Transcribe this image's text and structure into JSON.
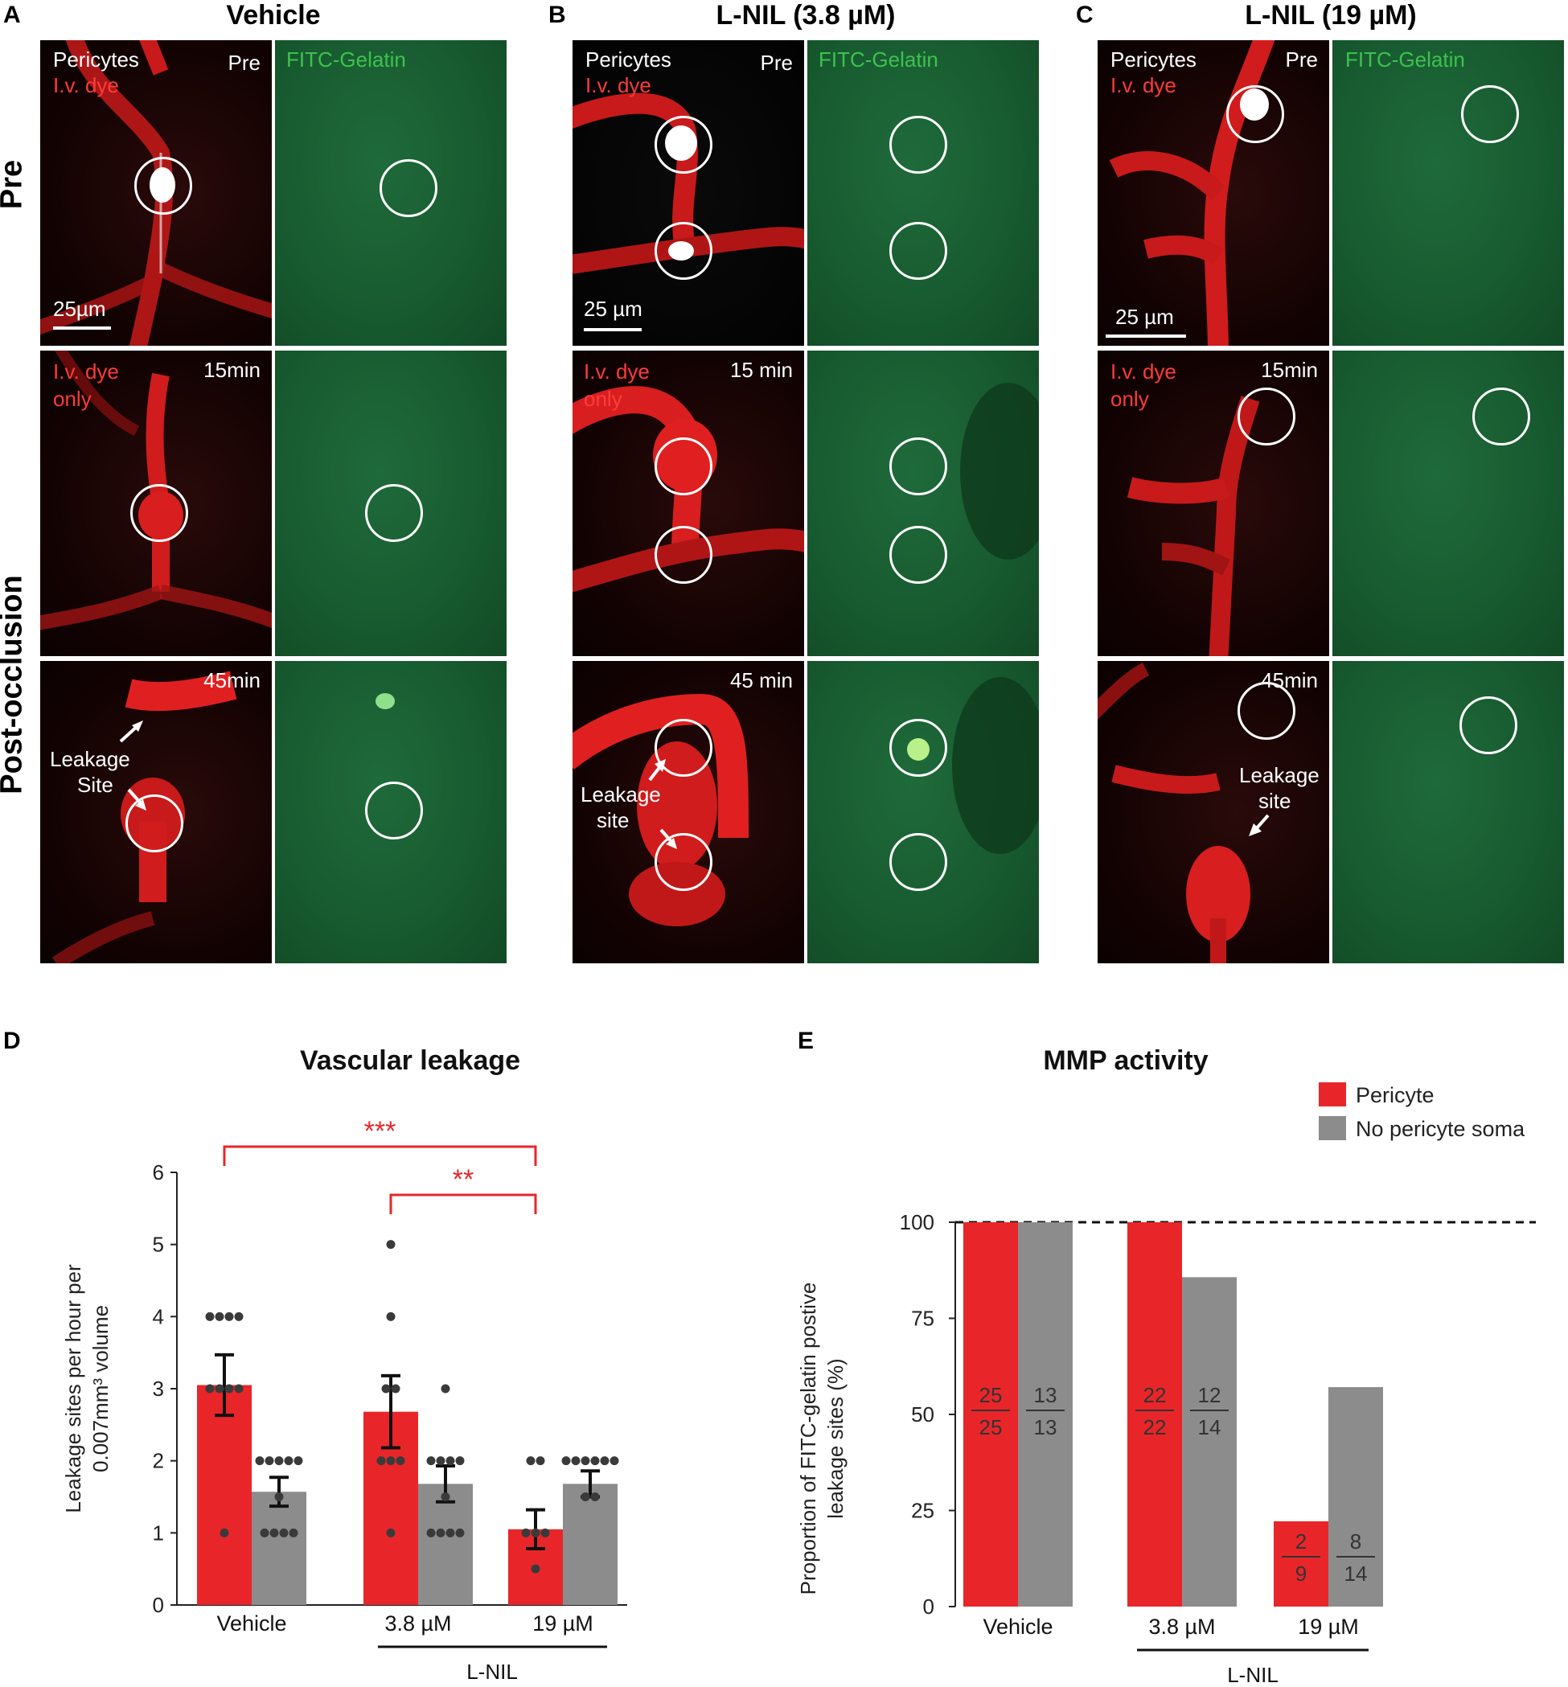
{
  "panel_labels": {
    "a": "A",
    "b": "B",
    "c": "C",
    "d": "D",
    "e": "E"
  },
  "columns": [
    {
      "title": "Vehicle"
    },
    {
      "title": "L-NIL (3.8 µM)"
    },
    {
      "title": "L-NIL (19 µM)"
    }
  ],
  "row_labels": {
    "pre": "Pre",
    "post": "Post-occlusion"
  },
  "micrographs": {
    "a": {
      "pre_l1": "Pericytes",
      "pre_l2": "I.v. dye",
      "pre_tag": "Pre",
      "green_label": "FITC-Gelatin",
      "scale": "25µm",
      "t15_l1": "I.v. dye",
      "t15_l2": "only",
      "t15_time": "15min",
      "t45_time": "45min",
      "leak_l1": "Leakage",
      "leak_l2": "Site"
    },
    "b": {
      "pre_l1": "Pericytes",
      "pre_l2": "I.v. dye",
      "pre_tag": "Pre",
      "green_label": "FITC-Gelatin",
      "scale": "25 µm",
      "t15_l1": "I.v. dye",
      "t15_l2": "only",
      "t15_time": "15 min",
      "t45_time": "45 min",
      "leak_l1": "Leakage",
      "leak_l2": "site"
    },
    "c": {
      "pre_l1": "Pericytes",
      "pre_l2": "I.v. dye",
      "pre_tag": "Pre",
      "green_label": "FITC-Gelatin",
      "scale": "25 µm",
      "t15_l1": "I.v. dye",
      "t15_l2": "only",
      "t15_time": "15min",
      "t45_time": "45min",
      "leak_l1": "Leakage",
      "leak_l2": "site"
    }
  },
  "colors": {
    "pericyte": "#e8262a",
    "no_pericyte": "#8c8c8c",
    "sig": "#e8262a",
    "dots": "#3a3a3a"
  },
  "chart_data": [
    {
      "type": "bar",
      "title": "Vascular leakage",
      "ylabel": "Leakage sites per hour per 0.007mm³ volume",
      "ylabel_l1": "Leakage sites per hour per",
      "ylabel_l2": "0.007mm³ volume",
      "categories": [
        "Vehicle",
        "3.8 µM",
        "19 µM"
      ],
      "group_label": "L-NIL",
      "ylim": [
        0,
        6
      ],
      "yticks": [
        "0",
        "1",
        "2",
        "3",
        "4",
        "5",
        "6"
      ],
      "series": [
        {
          "name": "Pericyte",
          "values": [
            3.05,
            2.68,
            1.05
          ],
          "sem": [
            0.42,
            0.5,
            0.27
          ],
          "points": [
            [
              4,
              4,
              4,
              4,
              3,
              3,
              3,
              3,
              1
            ],
            [
              5,
              4,
              3,
              3,
              2,
              2,
              2,
              1
            ],
            [
              2,
              2,
              1,
              1,
              1,
              0.5
            ]
          ]
        },
        {
          "name": "No pericyte soma",
          "values": [
            1.57,
            1.68,
            1.68
          ],
          "sem": [
            0.2,
            0.25,
            0.18
          ],
          "points": [
            [
              2,
              2,
              2,
              2,
              2,
              1.5,
              1,
              1,
              1,
              1
            ],
            [
              3,
              2,
              2,
              2,
              2,
              1.5,
              1,
              1,
              1,
              1
            ],
            [
              2,
              2,
              2,
              2,
              2,
              2,
              1.5,
              1.5
            ]
          ]
        }
      ],
      "significance": [
        {
          "from": 0,
          "to": 2,
          "label": "***"
        },
        {
          "from": 1,
          "to": 2,
          "label": "**"
        }
      ]
    },
    {
      "type": "bar",
      "title": "MMP activity",
      "ylabel": "Proportion of FITC-gelatin postive leakage sites (%)",
      "ylabel_l1": "Proportion of FITC-gelatin postive",
      "ylabel_l2": "leakage sites (%)",
      "categories": [
        "Vehicle",
        "3.8 µM",
        "19 µM"
      ],
      "group_label": "L-NIL",
      "ylim": [
        0,
        100
      ],
      "yticks": [
        "0",
        "25",
        "50",
        "75",
        "100"
      ],
      "reference_line": 100,
      "legend": [
        "Pericyte",
        "No pericyte soma"
      ],
      "legend_position": "top-right",
      "series": [
        {
          "name": "Pericyte",
          "values": [
            100,
            100,
            22.2
          ],
          "fractions": [
            [
              "25",
              "25"
            ],
            [
              "22",
              "22"
            ],
            [
              "2",
              "9"
            ]
          ]
        },
        {
          "name": "No pericyte soma",
          "values": [
            100,
            85.7,
            57.1
          ],
          "fractions": [
            [
              "13",
              "13"
            ],
            [
              "12",
              "14"
            ],
            [
              "8",
              "14"
            ]
          ]
        }
      ]
    }
  ]
}
